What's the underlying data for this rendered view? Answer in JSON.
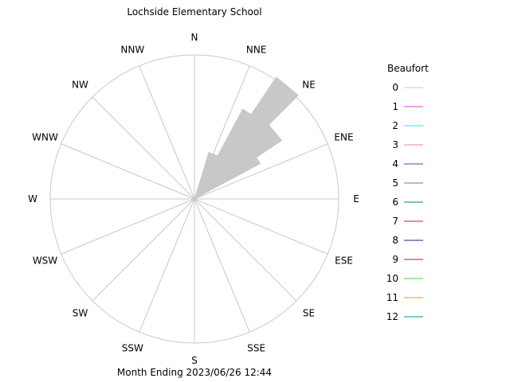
{
  "chart_data": {
    "type": "wind-rose",
    "title": "Lochside Elementary School",
    "footer": "Month Ending 2023/06/26 12:44",
    "directions": [
      "N",
      "NNE",
      "NE",
      "ENE",
      "E",
      "ESE",
      "SE",
      "SSE",
      "S",
      "SSW",
      "SW",
      "WSW",
      "W",
      "WNW",
      "NW",
      "NNW"
    ],
    "legend_title": "Beaufort",
    "legend": [
      {
        "label": "0",
        "color": "#c8c8c8"
      },
      {
        "label": "1",
        "color": "#e040e0"
      },
      {
        "label": "2",
        "color": "#30e0e0"
      },
      {
        "label": "3",
        "color": "#e080c0"
      },
      {
        "label": "4",
        "color": "#8030a0"
      },
      {
        "label": "5",
        "color": "#a07030"
      },
      {
        "label": "6",
        "color": "#008080"
      },
      {
        "label": "7",
        "color": "#a03030"
      },
      {
        "label": "8",
        "color": "#202080"
      },
      {
        "label": "9",
        "color": "#a02040"
      },
      {
        "label": "10",
        "color": "#30e030"
      },
      {
        "label": "11",
        "color": "#e0a000"
      },
      {
        "label": "12",
        "color": "#0090a0"
      }
    ],
    "petal_color": "#c8c8c8",
    "max_fraction": 1.0,
    "petals": [
      {
        "bearing": 22.5,
        "length": 0.34
      },
      {
        "bearing": 33.75,
        "length": 0.71
      },
      {
        "bearing": 39.375,
        "length": 1.02
      },
      {
        "bearing": 45.0,
        "length": 0.7
      },
      {
        "bearing": 50.625,
        "length": 0.73
      },
      {
        "bearing": 56.25,
        "length": 0.52
      }
    ]
  }
}
